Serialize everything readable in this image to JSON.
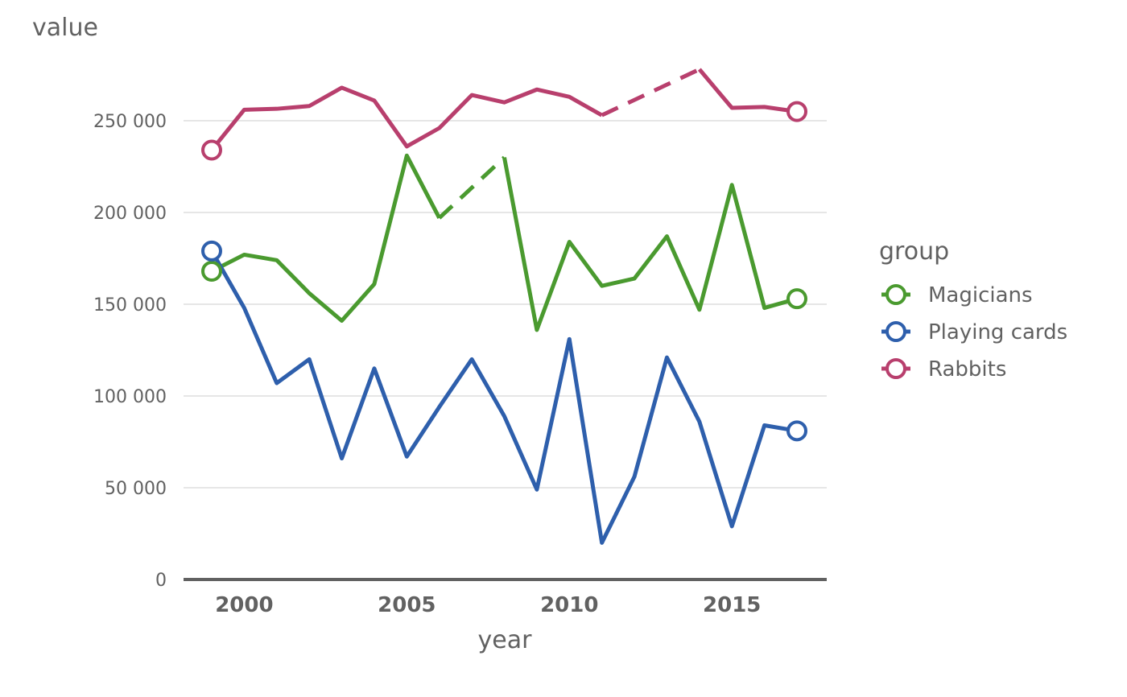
{
  "chart_data": {
    "type": "line",
    "ylabel": "value",
    "xlabel": "year",
    "xlim": [
      1998,
      2018
    ],
    "ylim": [
      0,
      280000
    ],
    "x_ticks": [
      2000,
      2005,
      2010,
      2015
    ],
    "y_ticks": [
      0,
      50000,
      100000,
      150000,
      200000,
      250000
    ],
    "y_tick_labels": [
      "0",
      "50 000",
      "100 000",
      "150 000",
      "200 000",
      "250 000"
    ],
    "grid": true,
    "legend": {
      "title": "group",
      "position": "right"
    },
    "x": [
      1999,
      2000,
      2001,
      2002,
      2003,
      2004,
      2005,
      2006,
      2007,
      2008,
      2009,
      2010,
      2011,
      2012,
      2013,
      2014,
      2015,
      2016,
      2017
    ],
    "series": [
      {
        "name": "Magicians",
        "color": "#4a9a2f",
        "values": [
          168000,
          177000,
          174000,
          156000,
          141000,
          161000,
          231000,
          197000,
          null,
          230000,
          136000,
          184000,
          160000,
          164000,
          187000,
          147000,
          215000,
          148000,
          153000
        ],
        "dashed_between": [
          [
            2006,
            2008
          ]
        ]
      },
      {
        "name": "Playing cards",
        "color": "#2e5fac",
        "values": [
          179000,
          148000,
          107000,
          120000,
          66000,
          115000,
          67000,
          94000,
          120000,
          89000,
          49000,
          131000,
          20000,
          56000,
          121000,
          86000,
          29000,
          84000,
          81000
        ],
        "dashed_between": []
      },
      {
        "name": "Rabbits",
        "color": "#b83f6d",
        "values": [
          234000,
          256000,
          256500,
          258000,
          268000,
          261000,
          236000,
          246000,
          264000,
          260000,
          267000,
          263000,
          253000,
          null,
          null,
          278000,
          257000,
          257500,
          255000
        ],
        "dashed_between": [
          [
            2011,
            2014
          ]
        ]
      }
    ]
  }
}
